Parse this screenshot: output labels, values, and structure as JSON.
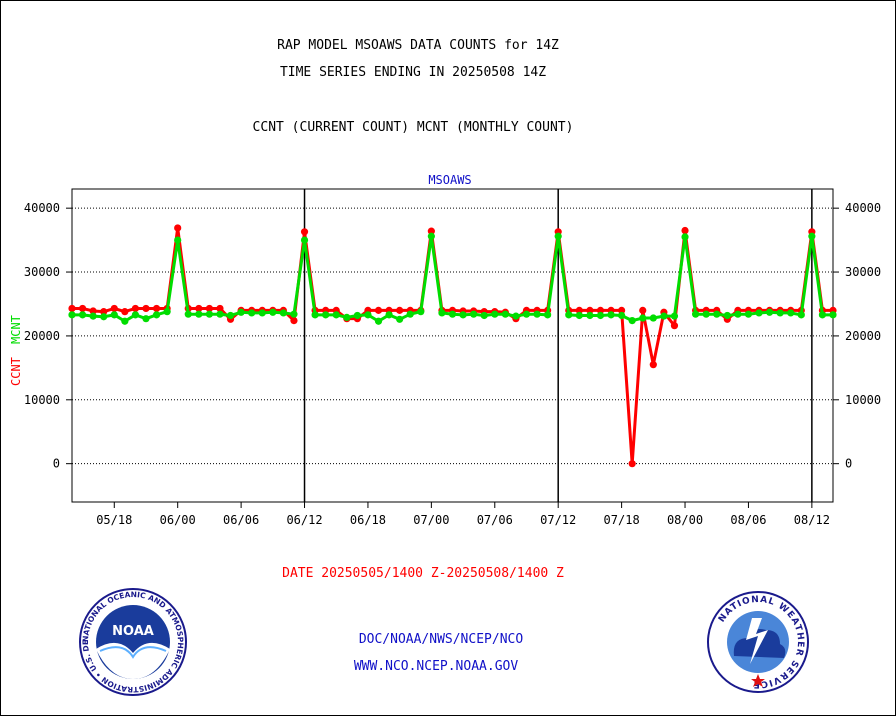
{
  "titles": {
    "line1": "RAP MODEL MSOAWS DATA COUNTS for 14Z",
    "line2": "TIME SERIES ENDING IN 20250508 14Z",
    "line3": "CCNT (CURRENT COUNT) MCNT (MONTHLY COUNT)"
  },
  "footer": {
    "date_range": "DATE 20250505/1400 Z-20250508/1400 Z",
    "link1": "DOC/NOAA/NWS/NCEP/NCO",
    "link2": "WWW.NCO.NCEP.NOAA.GOV"
  },
  "logos": {
    "noaa_text": "NOAA",
    "noaa_ring": "NATIONAL OCEANIC AND ATMOSPHERIC ADMINISTRATION • U.S. DEPARTMENT OF COMMERCE •",
    "nws_ring": "NATIONAL WEATHER SERVICE"
  },
  "chart_data": {
    "type": "line",
    "title": "MSOAWS",
    "ylabel_left_parts": [
      "CCNT",
      "MCNT"
    ],
    "x_tick_labels": [
      "05/18",
      "06/00",
      "06/06",
      "06/12",
      "06/18",
      "07/00",
      "07/06",
      "07/12",
      "07/18",
      "08/00",
      "08/06",
      "08/12"
    ],
    "x_tick_hours": [
      4,
      10,
      16,
      22,
      28,
      34,
      40,
      46,
      52,
      58,
      64,
      70
    ],
    "day_boundaries_hours": [
      22,
      46,
      70
    ],
    "x_range": [
      0,
      72
    ],
    "ylim": [
      -6000,
      43000
    ],
    "y_ticks": [
      0,
      10000,
      20000,
      30000,
      40000
    ],
    "y_tick_labels": [
      "0",
      "10000",
      "20000",
      "30000",
      "40000"
    ],
    "grid": true,
    "colors": {
      "CCNT": "#ff0000",
      "MCNT": "#00dd00",
      "title": "#1010c8"
    },
    "series": [
      {
        "name": "CCNT",
        "values": [
          24300,
          24300,
          23900,
          23800,
          24300,
          23800,
          24300,
          24300,
          24300,
          24300,
          36900,
          24300,
          24300,
          24300,
          24300,
          22600,
          24000,
          24000,
          24000,
          24000,
          24000,
          22400,
          36300,
          24000,
          24000,
          24000,
          22700,
          22700,
          24000,
          24000,
          24000,
          24000,
          24000,
          24000,
          36400,
          24000,
          24000,
          23900,
          23900,
          23800,
          23800,
          23700,
          22700,
          24000,
          24000,
          24000,
          36300,
          24000,
          24000,
          24000,
          24000,
          24000,
          24000,
          0,
          24000,
          15500,
          23700,
          21600,
          36500,
          24000,
          24000,
          24000,
          22600,
          24000,
          24000,
          24000,
          24000,
          24000,
          24000,
          24000,
          36300,
          24000,
          24000
        ]
      },
      {
        "name": "MCNT",
        "values": [
          23300,
          23300,
          23100,
          23000,
          23300,
          22300,
          23300,
          22700,
          23300,
          23800,
          35000,
          23400,
          23400,
          23400,
          23400,
          23200,
          23700,
          23600,
          23600,
          23700,
          23600,
          23400,
          35000,
          23300,
          23300,
          23300,
          22900,
          23200,
          23300,
          22300,
          23300,
          22600,
          23400,
          23800,
          35600,
          23600,
          23400,
          23300,
          23400,
          23200,
          23400,
          23400,
          23100,
          23400,
          23400,
          23300,
          35600,
          23300,
          23200,
          23200,
          23200,
          23300,
          23200,
          22400,
          22800,
          22800,
          23100,
          23100,
          35500,
          23400,
          23400,
          23400,
          23200,
          23400,
          23400,
          23600,
          23700,
          23600,
          23600,
          23300,
          35600,
          23300,
          23300
        ]
      }
    ]
  }
}
